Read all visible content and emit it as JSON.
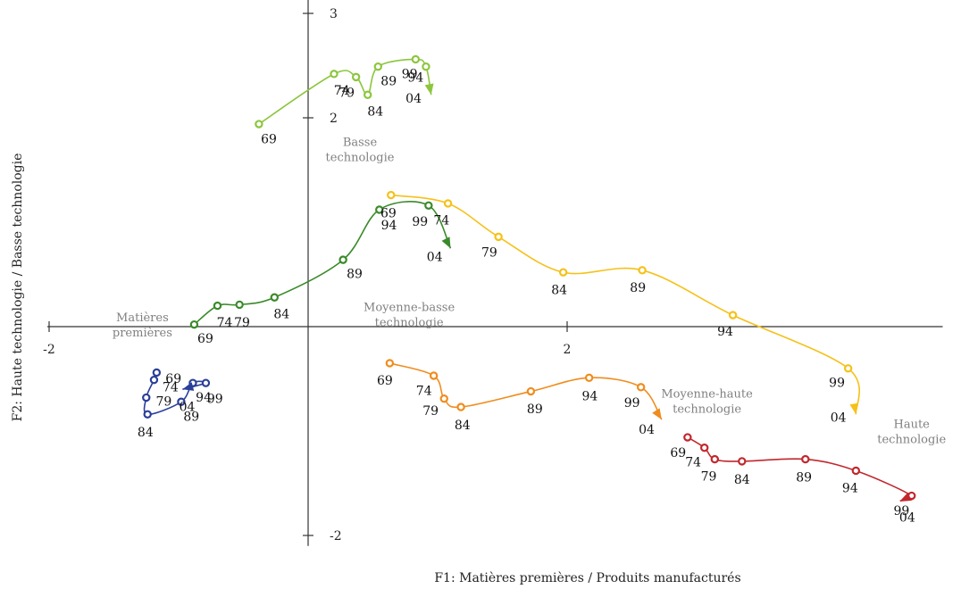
{
  "chart_data": {
    "type": "line",
    "xlabel": "F1: Matières premières / Produits manufacturés",
    "ylabel": "F2: Haute technologie / Basse technologie",
    "xlim": [
      -2.0,
      4.9
    ],
    "ylim": [
      -2.1,
      3.1
    ],
    "xticks": [
      {
        "value": -2,
        "label": "-2"
      },
      {
        "value": 2,
        "label": "2"
      }
    ],
    "yticks": [
      {
        "value": 3,
        "label": "3"
      },
      {
        "value": 2,
        "label": "2"
      },
      {
        "value": -2,
        "label": "-2"
      }
    ],
    "grid": false,
    "legend": "none",
    "group_labels": [
      {
        "text": [
          "Basse",
          "technologie"
        ],
        "x": 0.4,
        "y": 1.73
      },
      {
        "text": [
          "Moyenne-basse",
          "technologie"
        ],
        "x": 0.78,
        "y": 0.15
      },
      {
        "text": [
          "Matières",
          "premières"
        ],
        "x": -1.28,
        "y": 0.05
      },
      {
        "text": [
          "Moyenne-haute",
          "technologie"
        ],
        "x": 3.08,
        "y": -0.68
      },
      {
        "text": [
          "Haute",
          "technologie"
        ],
        "x": 4.66,
        "y": -0.97
      }
    ],
    "series": [
      {
        "color": "#8cc63e",
        "points": [
          {
            "x": -0.38,
            "y": 1.94,
            "label": "69"
          },
          {
            "x": 0.2,
            "y": 2.42,
            "label": "74"
          },
          {
            "x": 0.37,
            "y": 2.39,
            "label": "79"
          },
          {
            "x": 0.46,
            "y": 2.22,
            "label": "84"
          },
          {
            "x": 0.54,
            "y": 2.49,
            "label": "89"
          },
          {
            "x": 0.83,
            "y": 2.56,
            "label": "94"
          },
          {
            "x": 0.91,
            "y": 2.49,
            "label": "99"
          },
          {
            "x": 0.95,
            "y": 2.22,
            "label": "04"
          }
        ]
      },
      {
        "color": "#3a8a2a",
        "points": [
          {
            "x": -0.88,
            "y": 0.02,
            "label": "69"
          },
          {
            "x": -0.7,
            "y": 0.2,
            "label": "74"
          },
          {
            "x": -0.53,
            "y": 0.21,
            "label": "79"
          },
          {
            "x": -0.26,
            "y": 0.28,
            "label": "84"
          },
          {
            "x": 0.27,
            "y": 0.64,
            "label": "89"
          },
          {
            "x": 0.55,
            "y": 1.12,
            "label": "94"
          },
          {
            "x": 0.93,
            "y": 1.16,
            "label": "99"
          },
          {
            "x": 1.1,
            "y": 0.75,
            "label": "04"
          }
        ]
      },
      {
        "color": "#f5c119",
        "points": [
          {
            "x": 0.64,
            "y": 1.26,
            "label": "69"
          },
          {
            "x": 1.08,
            "y": 1.18,
            "label": "74"
          },
          {
            "x": 1.47,
            "y": 0.86,
            "label": "79"
          },
          {
            "x": 1.97,
            "y": 0.52,
            "label": "84"
          },
          {
            "x": 2.58,
            "y": 0.54,
            "label": "89"
          },
          {
            "x": 3.28,
            "y": 0.11,
            "label": "94"
          },
          {
            "x": 4.17,
            "y": -0.4,
            "label": "99"
          },
          {
            "x": 4.23,
            "y": -0.84,
            "label": "04"
          }
        ]
      },
      {
        "color": "#f08c1e",
        "points": [
          {
            "x": 0.63,
            "y": -0.35,
            "label": "69"
          },
          {
            "x": 0.97,
            "y": -0.47,
            "label": "74"
          },
          {
            "x": 1.05,
            "y": -0.69,
            "label": "79"
          },
          {
            "x": 1.18,
            "y": -0.77,
            "label": "84"
          },
          {
            "x": 1.72,
            "y": -0.62,
            "label": "89"
          },
          {
            "x": 2.17,
            "y": -0.49,
            "label": "94"
          },
          {
            "x": 2.57,
            "y": -0.58,
            "label": "99"
          },
          {
            "x": 2.73,
            "y": -0.89,
            "label": "04"
          }
        ]
      },
      {
        "color": "#c1272d",
        "points": [
          {
            "x": 2.93,
            "y": -1.06,
            "label": "69"
          },
          {
            "x": 3.06,
            "y": -1.16,
            "label": "74"
          },
          {
            "x": 3.14,
            "y": -1.27,
            "label": "79"
          },
          {
            "x": 3.35,
            "y": -1.29,
            "label": "84"
          },
          {
            "x": 3.84,
            "y": -1.27,
            "label": "89"
          },
          {
            "x": 4.23,
            "y": -1.38,
            "label": "94"
          },
          {
            "x": 4.66,
            "y": -1.62,
            "label": "99"
          },
          {
            "x": 4.57,
            "y": -1.67,
            "label": "04"
          }
        ]
      },
      {
        "color": "#2a3f9a",
        "points": [
          {
            "x": -1.17,
            "y": -0.44,
            "label": "69"
          },
          {
            "x": -1.19,
            "y": -0.51,
            "label": "74"
          },
          {
            "x": -1.25,
            "y": -0.68,
            "label": "79"
          },
          {
            "x": -1.24,
            "y": -0.84,
            "label": "84"
          },
          {
            "x": -0.98,
            "y": -0.72,
            "label": "89"
          },
          {
            "x": -0.89,
            "y": -0.54,
            "label": "94"
          },
          {
            "x": -0.79,
            "y": -0.54,
            "label": "99"
          },
          {
            "x": -0.97,
            "y": -0.6,
            "label": "04"
          }
        ]
      }
    ]
  }
}
